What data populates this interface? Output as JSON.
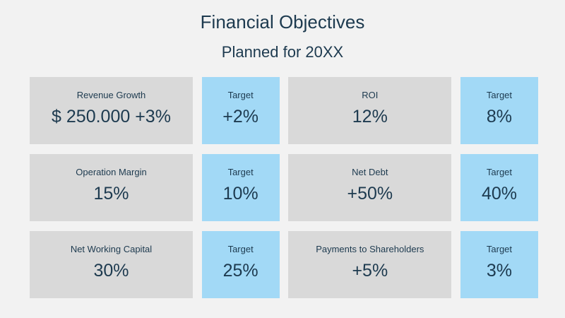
{
  "title": "Financial Objectives",
  "subtitle": "Planned for 20XX",
  "objectives": [
    {
      "label": "Revenue Growth",
      "value": "$ 250.000 +3%",
      "target_label": "Target",
      "target_value": "+2%"
    },
    {
      "label": "ROI",
      "value": "12%",
      "target_label": "Target",
      "target_value": "8%"
    },
    {
      "label": "Operation Margin",
      "value": "15%",
      "target_label": "Target",
      "target_value": "10%"
    },
    {
      "label": "Net Debt",
      "value": "+50%",
      "target_label": "Target",
      "target_value": "40%"
    },
    {
      "label": "Net Working Capital",
      "value": "30%",
      "target_label": "Target",
      "target_value": "25%"
    },
    {
      "label": "Payments to Shareholders",
      "value": "+5%",
      "target_label": "Target",
      "target_value": "3%"
    }
  ],
  "colors": {
    "background": "#f2f2f2",
    "metric_box": "#d9d9d9",
    "target_box": "#a2d9f6",
    "text": "#1d3a4f"
  }
}
